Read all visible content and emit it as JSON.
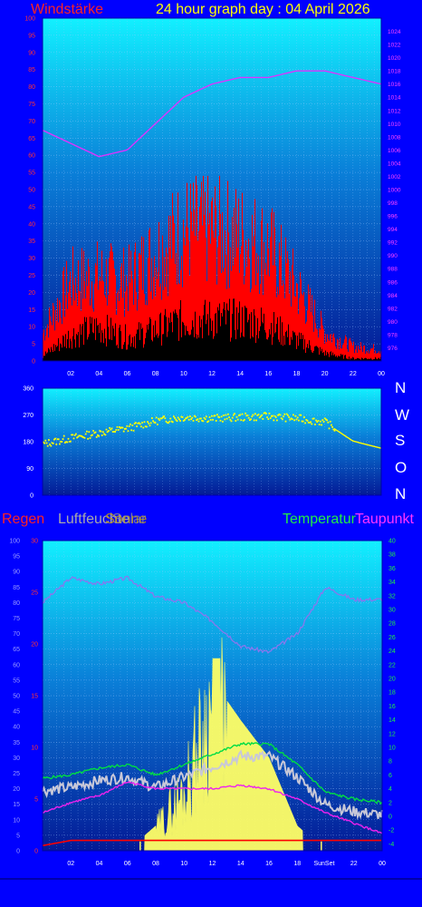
{
  "header": {
    "wind_title": "Windstärke",
    "graph_title": "24 hour graph day : 04 April 2026"
  },
  "compass": [
    "N",
    "W",
    "S",
    "O",
    "N"
  ],
  "legend": {
    "rain": "Regen",
    "humidity": "Luftfeuchte",
    "sun": "Sonne",
    "solar": "Solar",
    "temperature": "Temperatur",
    "dewpoint": "Taupunkt"
  },
  "colors": {
    "background": "#0000ff",
    "wind_speed": "#ff0000",
    "wind_average": "#000000",
    "pressure": "#dd33ff",
    "wind_direction": "#ffff00",
    "temperature": "#00dd44",
    "dewpoint": "#ee22ee",
    "humidity": "#8877ee",
    "solar": "#ffff66",
    "rain": "#ff0000"
  },
  "chart_data": [
    {
      "type": "area",
      "series": [
        {
          "name": "Windstärke",
          "x": [
            "00",
            "02",
            "04",
            "06",
            "08",
            "10",
            "12",
            "14",
            "16",
            "18",
            "20",
            "22",
            "00"
          ],
          "values": [
            10,
            28,
            30,
            28,
            38,
            46,
            46,
            44,
            40,
            26,
            10,
            5,
            4
          ]
        },
        {
          "name": "",
          "x": [
            "00",
            "02",
            "04",
            "06",
            "08",
            "10",
            "12",
            "14",
            "16",
            "18",
            "20",
            "22",
            "00"
          ],
          "values": [
            2,
            10,
            13,
            9,
            12,
            16,
            16,
            16,
            14,
            8,
            3,
            1,
            1
          ]
        },
        {
          "name": "",
          "x": [
            "00",
            "02",
            "04",
            "06",
            "08",
            "10",
            "12",
            "14",
            "16",
            "18",
            "20",
            "22",
            "00"
          ],
          "values": [
            1009,
            1007,
            1005,
            1006,
            1010,
            1014,
            1016,
            1017,
            1017,
            1018,
            1018,
            1017,
            1016
          ]
        }
      ],
      "x_ticks": [
        "02",
        "04",
        "06",
        "08",
        "10",
        "12",
        "14",
        "16",
        "18",
        "20",
        "22",
        "00"
      ],
      "left_axis_ticks": [
        0,
        5,
        10,
        15,
        20,
        25,
        30,
        35,
        40,
        45,
        50,
        55,
        60,
        65,
        70,
        75,
        80,
        85,
        90,
        95,
        100
      ],
      "ylim_left": [
        0,
        100
      ],
      "right_axis_ticks": [
        976,
        978,
        980,
        982,
        984,
        986,
        988,
        990,
        992,
        994,
        996,
        998,
        1000,
        1002,
        1004,
        1006,
        1008,
        1010,
        1012,
        1014,
        1016,
        1018,
        1020,
        1022,
        1024
      ],
      "ylim_right": [
        974,
        1026
      ],
      "grid": true
    },
    {
      "type": "scatter",
      "series": [
        {
          "name": "",
          "x": [
            "00",
            "02",
            "04",
            "06",
            "08",
            "10",
            "12",
            "14",
            "16",
            "18",
            "20",
            "22",
            "00"
          ],
          "values": [
            172,
            192,
            210,
            225,
            250,
            262,
            258,
            262,
            265,
            258,
            245,
            182,
            158
          ]
        }
      ],
      "x_ticks": [],
      "y_ticks": [
        0,
        90,
        180,
        270,
        360
      ],
      "ylim": [
        0,
        360
      ],
      "compass_labels": [
        "N",
        "W",
        "S",
        "O",
        "N"
      ],
      "grid": true
    },
    {
      "type": "line",
      "series": [
        {
          "name": "Luftfeuchte",
          "x": [
            "00",
            "02",
            "04",
            "06",
            "08",
            "10",
            "12",
            "14",
            "16",
            "18",
            "20",
            "22",
            "00"
          ],
          "values": [
            80,
            88,
            86,
            88,
            82,
            80,
            74,
            66,
            64,
            70,
            85,
            81,
            81
          ]
        },
        {
          "name": "Temperatur",
          "x": [
            "00",
            "02",
            "04",
            "06",
            "08",
            "10",
            "12",
            "14",
            "16",
            "18",
            "20",
            "22",
            "00"
          ],
          "values": [
            5.5,
            6,
            7,
            7.5,
            6,
            7.5,
            9,
            10.5,
            10.5,
            7.5,
            3.5,
            2.5,
            2
          ]
        },
        {
          "name": "Taupunkt",
          "x": [
            "00",
            "02",
            "04",
            "06",
            "08",
            "10",
            "12",
            "14",
            "16",
            "18",
            "20",
            "22",
            "00"
          ],
          "values": [
            0.5,
            2,
            3,
            5,
            4,
            4,
            4,
            4.5,
            4,
            2.5,
            0.5,
            -1,
            -2.5
          ]
        },
        {
          "name": "Solar",
          "x": [
            "00",
            "02",
            "04",
            "06",
            "08",
            "10",
            "12",
            "14",
            "16",
            "18",
            "20",
            "22",
            "00"
          ],
          "values": [
            0,
            0,
            0,
            0,
            8,
            22,
            55,
            42,
            30,
            8,
            0,
            0,
            0
          ]
        },
        {
          "name": "Regen",
          "x": [
            "00",
            "02",
            "04",
            "06",
            "08",
            "10",
            "12",
            "14",
            "16",
            "18",
            "20",
            "22",
            "00"
          ],
          "values": [
            0.5,
            1,
            1,
            1,
            1,
            1,
            1,
            1,
            1,
            1,
            1,
            1,
            1
          ]
        }
      ],
      "x_ticks": [
        "02",
        "04",
        "06",
        "08",
        "10",
        "12",
        "14",
        "16",
        "18",
        "20",
        "22",
        "00"
      ],
      "sunset_label": "SunSet",
      "left_axis_ticks": [
        0,
        5,
        10,
        15,
        20,
        25,
        30,
        35,
        40,
        45,
        50,
        55,
        60,
        65,
        70,
        75,
        80,
        85,
        90,
        95,
        100
      ],
      "ylim_left": [
        0,
        100
      ],
      "rain_axis_ticks": [
        0,
        5,
        10,
        15,
        20,
        25,
        30
      ],
      "ylim_rain": [
        0,
        30
      ],
      "right_axis_ticks": [
        -4,
        -2,
        0,
        2,
        4,
        6,
        8,
        10,
        12,
        14,
        16,
        18,
        20,
        22,
        24,
        26,
        28,
        30,
        32,
        34,
        36,
        38,
        40
      ],
      "ylim_right": [
        -5,
        40
      ],
      "grid": true
    }
  ]
}
